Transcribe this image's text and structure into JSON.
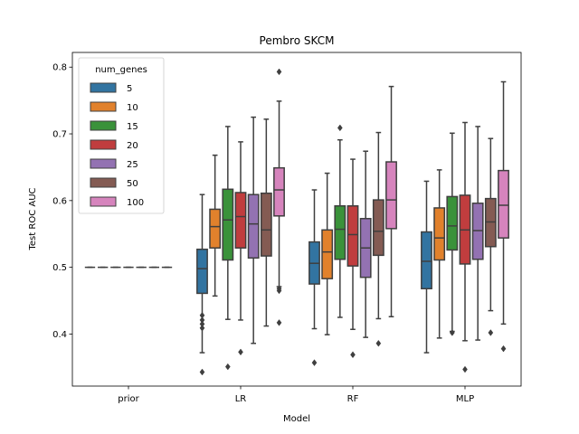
{
  "chart_data": {
    "type": "box",
    "title": "Pembro SKCM",
    "xlabel": "Model",
    "ylabel": "Test ROC AUC",
    "ylim": [
      0.322,
      0.822
    ],
    "yticks": [
      "0.4",
      "0.5",
      "0.6",
      "0.7",
      "0.8"
    ],
    "categories": [
      "prior",
      "LR",
      "RF",
      "MLP"
    ],
    "legend_title": "num_genes",
    "legend_position": "top-left",
    "grid": false,
    "series": [
      {
        "name": "5",
        "color": "#3274a1"
      },
      {
        "name": "10",
        "color": "#e1812c"
      },
      {
        "name": "15",
        "color": "#3a923a"
      },
      {
        "name": "20",
        "color": "#c03d3e"
      },
      {
        "name": "25",
        "color": "#9372b2"
      },
      {
        "name": "50",
        "color": "#845b53"
      },
      {
        "name": "100",
        "color": "#d684bd"
      }
    ],
    "boxes": [
      {
        "category": "prior",
        "series": "5",
        "whislo": 0.5,
        "q1": 0.5,
        "med": 0.5,
        "q3": 0.5,
        "whishi": 0.5,
        "fliers": []
      },
      {
        "category": "prior",
        "series": "10",
        "whislo": 0.5,
        "q1": 0.5,
        "med": 0.5,
        "q3": 0.5,
        "whishi": 0.5,
        "fliers": []
      },
      {
        "category": "prior",
        "series": "15",
        "whislo": 0.5,
        "q1": 0.5,
        "med": 0.5,
        "q3": 0.5,
        "whishi": 0.5,
        "fliers": []
      },
      {
        "category": "prior",
        "series": "20",
        "whislo": 0.5,
        "q1": 0.5,
        "med": 0.5,
        "q3": 0.5,
        "whishi": 0.5,
        "fliers": []
      },
      {
        "category": "prior",
        "series": "25",
        "whislo": 0.5,
        "q1": 0.5,
        "med": 0.5,
        "q3": 0.5,
        "whishi": 0.5,
        "fliers": []
      },
      {
        "category": "prior",
        "series": "50",
        "whislo": 0.5,
        "q1": 0.5,
        "med": 0.5,
        "q3": 0.5,
        "whishi": 0.5,
        "fliers": []
      },
      {
        "category": "prior",
        "series": "100",
        "whislo": 0.5,
        "q1": 0.5,
        "med": 0.5,
        "q3": 0.5,
        "whishi": 0.5,
        "fliers": []
      },
      {
        "category": "LR",
        "series": "5",
        "whislo": 0.372,
        "q1": 0.461,
        "med": 0.498,
        "q3": 0.527,
        "whishi": 0.609,
        "fliers": [
          0.343,
          0.409,
          0.415,
          0.421,
          0.428
        ]
      },
      {
        "category": "LR",
        "series": "10",
        "whislo": 0.457,
        "q1": 0.529,
        "med": 0.561,
        "q3": 0.587,
        "whishi": 0.668,
        "fliers": []
      },
      {
        "category": "LR",
        "series": "15",
        "whislo": 0.422,
        "q1": 0.511,
        "med": 0.571,
        "q3": 0.617,
        "whishi": 0.711,
        "fliers": [
          0.351
        ]
      },
      {
        "category": "LR",
        "series": "20",
        "whislo": 0.421,
        "q1": 0.529,
        "med": 0.576,
        "q3": 0.612,
        "whishi": 0.688,
        "fliers": [
          0.373
        ]
      },
      {
        "category": "LR",
        "series": "25",
        "whislo": 0.386,
        "q1": 0.514,
        "med": 0.565,
        "q3": 0.609,
        "whishi": 0.725,
        "fliers": []
      },
      {
        "category": "LR",
        "series": "50",
        "whislo": 0.412,
        "q1": 0.517,
        "med": 0.556,
        "q3": 0.611,
        "whishi": 0.722,
        "fliers": []
      },
      {
        "category": "LR",
        "series": "100",
        "whislo": 0.471,
        "q1": 0.577,
        "med": 0.616,
        "q3": 0.649,
        "whishi": 0.749,
        "fliers": [
          0.417,
          0.465,
          0.468,
          0.793
        ]
      },
      {
        "category": "RF",
        "series": "5",
        "whislo": 0.408,
        "q1": 0.475,
        "med": 0.506,
        "q3": 0.538,
        "whishi": 0.616,
        "fliers": [
          0.357
        ]
      },
      {
        "category": "RF",
        "series": "10",
        "whislo": 0.399,
        "q1": 0.483,
        "med": 0.523,
        "q3": 0.556,
        "whishi": 0.641,
        "fliers": []
      },
      {
        "category": "RF",
        "series": "15",
        "whislo": 0.425,
        "q1": 0.512,
        "med": 0.557,
        "q3": 0.592,
        "whishi": 0.691,
        "fliers": [
          0.709
        ]
      },
      {
        "category": "RF",
        "series": "20",
        "whislo": 0.407,
        "q1": 0.502,
        "med": 0.549,
        "q3": 0.592,
        "whishi": 0.662,
        "fliers": [
          0.369
        ]
      },
      {
        "category": "RF",
        "series": "25",
        "whislo": 0.395,
        "q1": 0.485,
        "med": 0.529,
        "q3": 0.573,
        "whishi": 0.674,
        "fliers": []
      },
      {
        "category": "RF",
        "series": "50",
        "whislo": 0.423,
        "q1": 0.518,
        "med": 0.554,
        "q3": 0.601,
        "whishi": 0.702,
        "fliers": [
          0.386
        ]
      },
      {
        "category": "RF",
        "series": "100",
        "whislo": 0.426,
        "q1": 0.558,
        "med": 0.601,
        "q3": 0.658,
        "whishi": 0.771,
        "fliers": []
      },
      {
        "category": "MLP",
        "series": "5",
        "whislo": 0.372,
        "q1": 0.468,
        "med": 0.509,
        "q3": 0.553,
        "whishi": 0.629,
        "fliers": []
      },
      {
        "category": "MLP",
        "series": "10",
        "whislo": 0.394,
        "q1": 0.511,
        "med": 0.544,
        "q3": 0.589,
        "whishi": 0.646,
        "fliers": []
      },
      {
        "category": "MLP",
        "series": "15",
        "whislo": 0.404,
        "q1": 0.526,
        "med": 0.562,
        "q3": 0.606,
        "whishi": 0.701,
        "fliers": [
          0.402
        ]
      },
      {
        "category": "MLP",
        "series": "20",
        "whislo": 0.39,
        "q1": 0.505,
        "med": 0.556,
        "q3": 0.608,
        "whishi": 0.717,
        "fliers": [
          0.347
        ]
      },
      {
        "category": "MLP",
        "series": "25",
        "whislo": 0.391,
        "q1": 0.512,
        "med": 0.555,
        "q3": 0.596,
        "whishi": 0.711,
        "fliers": []
      },
      {
        "category": "MLP",
        "series": "50",
        "whislo": 0.435,
        "q1": 0.531,
        "med": 0.568,
        "q3": 0.603,
        "whishi": 0.693,
        "fliers": [
          0.402
        ]
      },
      {
        "category": "MLP",
        "series": "100",
        "whislo": 0.415,
        "q1": 0.544,
        "med": 0.593,
        "q3": 0.645,
        "whishi": 0.778,
        "fliers": [
          0.378
        ]
      }
    ]
  }
}
